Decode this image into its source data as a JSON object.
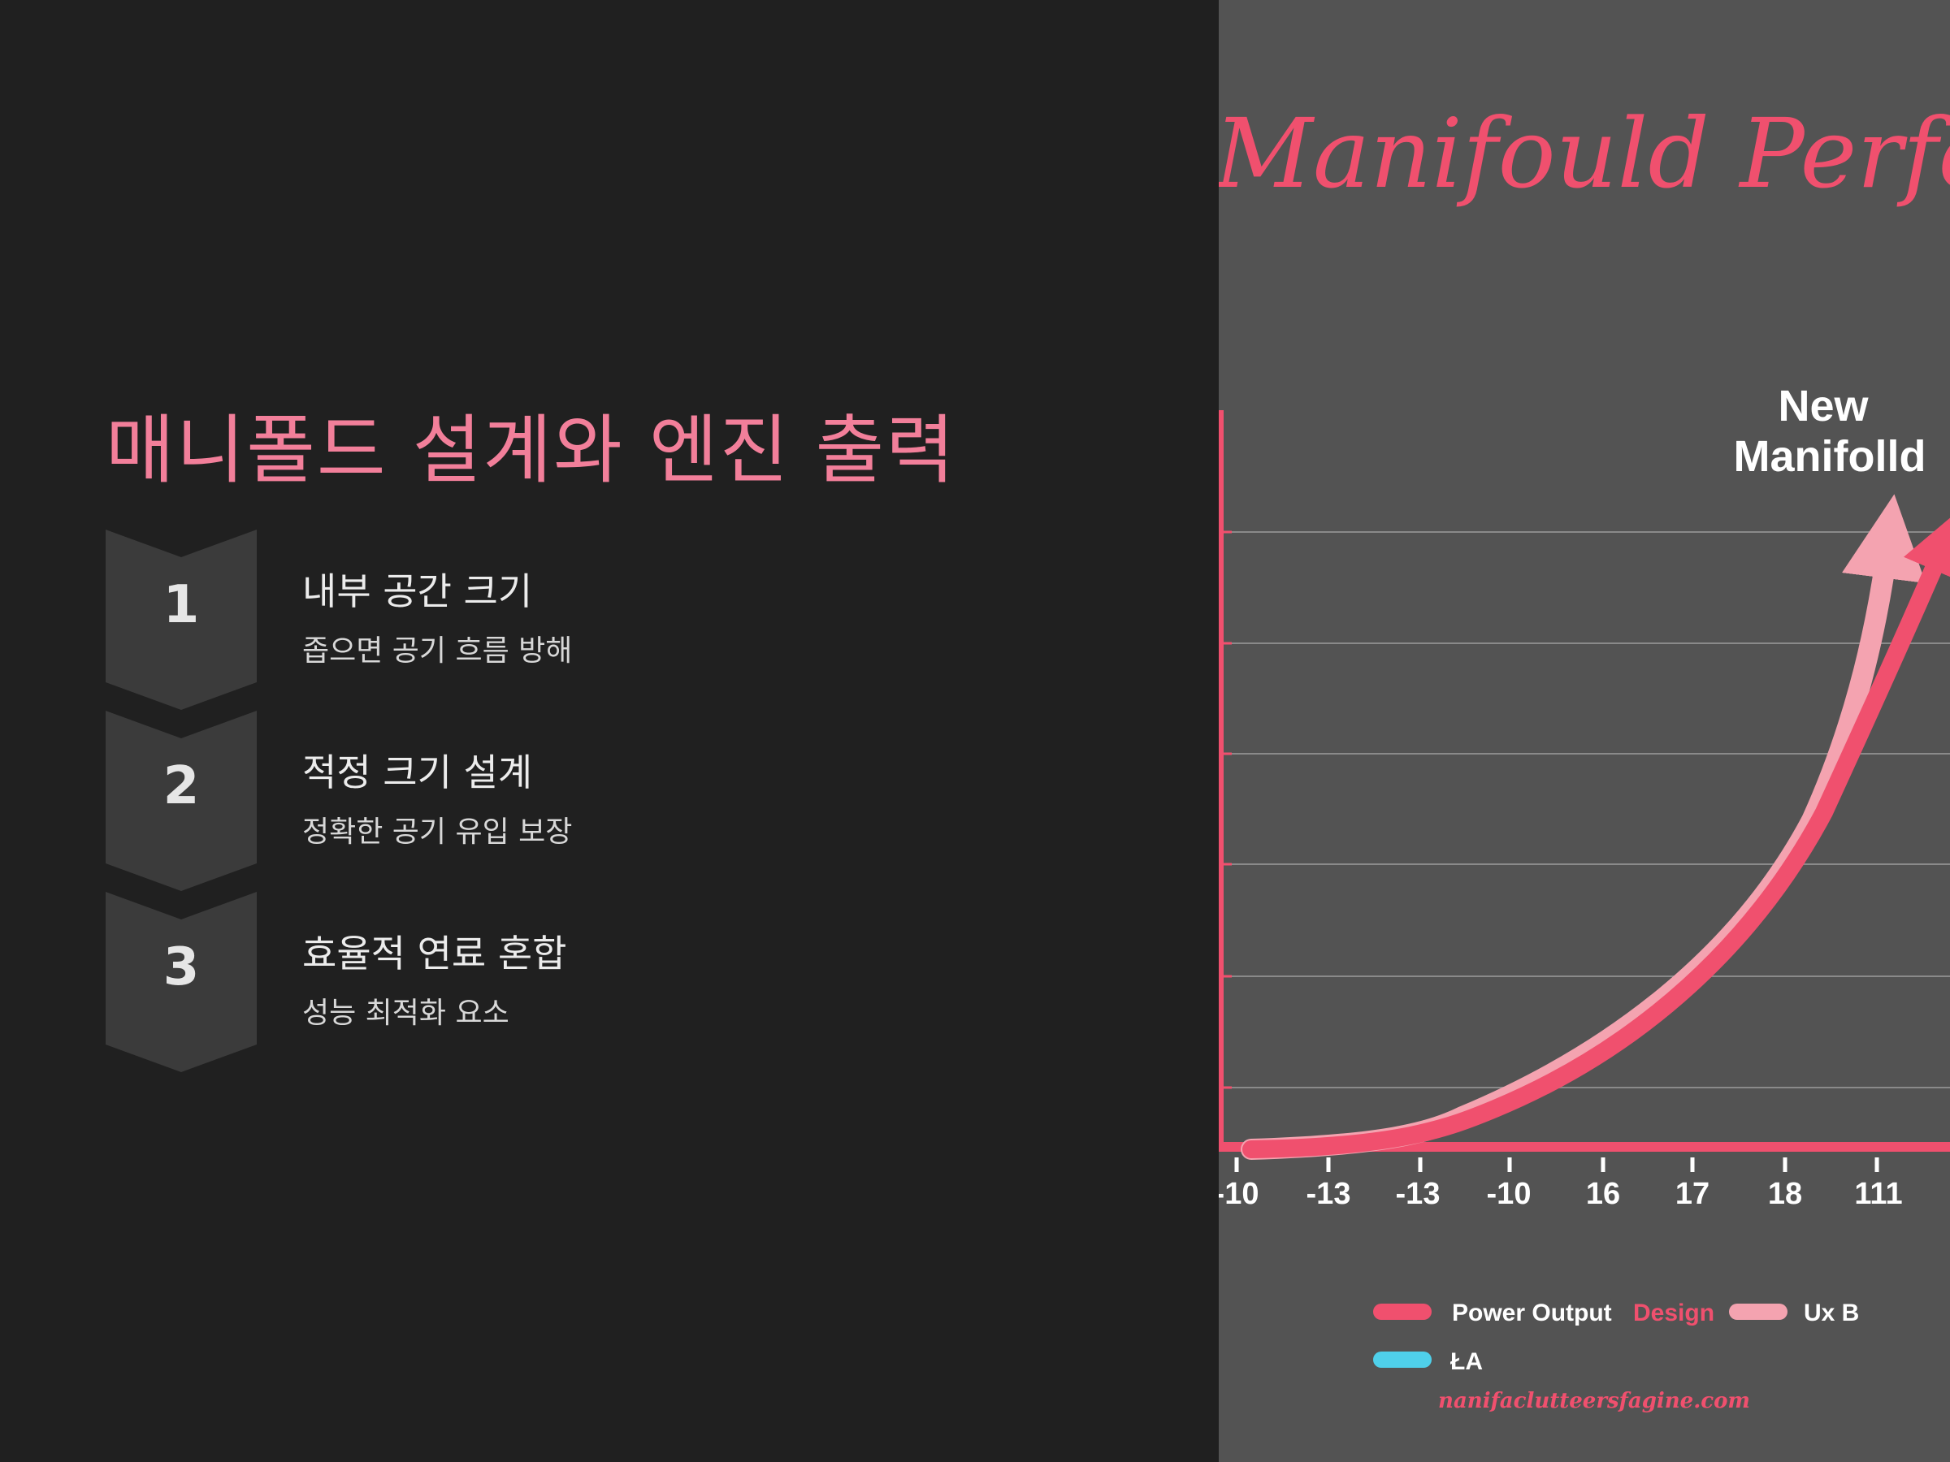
{
  "left": {
    "title": "매니폴드 설계와 엔진 출력",
    "steps": [
      {
        "number": "1",
        "title": "내부 공간 크기",
        "desc": "좁으면 공기 흐름 방해"
      },
      {
        "number": "2",
        "title": "적정 크기 설계",
        "desc": "정확한 공기 유입 보장"
      },
      {
        "number": "3",
        "title": "효율적 연료 혼합",
        "desc": "성능 최적화 요소"
      }
    ]
  },
  "chart": {
    "title": "Manifould Performanc",
    "annotation": "New Manifolld",
    "annotation_line1": "New",
    "annotation_line2": "Manifolld",
    "x_ticks": [
      "-10",
      "-13",
      "-13",
      "-10",
      "16",
      "17",
      "18",
      "111"
    ],
    "legend": {
      "power_output": "Power Output",
      "design": "Design",
      "uxb": "Ux B",
      "ta": "ŁA"
    },
    "watermark": "nanifaclutteersfagine.com",
    "colors": {
      "primary": "#f0506e",
      "secondary": "#f4a3b0",
      "cyan": "#4fd0ea",
      "title": "#f0506e"
    }
  }
}
